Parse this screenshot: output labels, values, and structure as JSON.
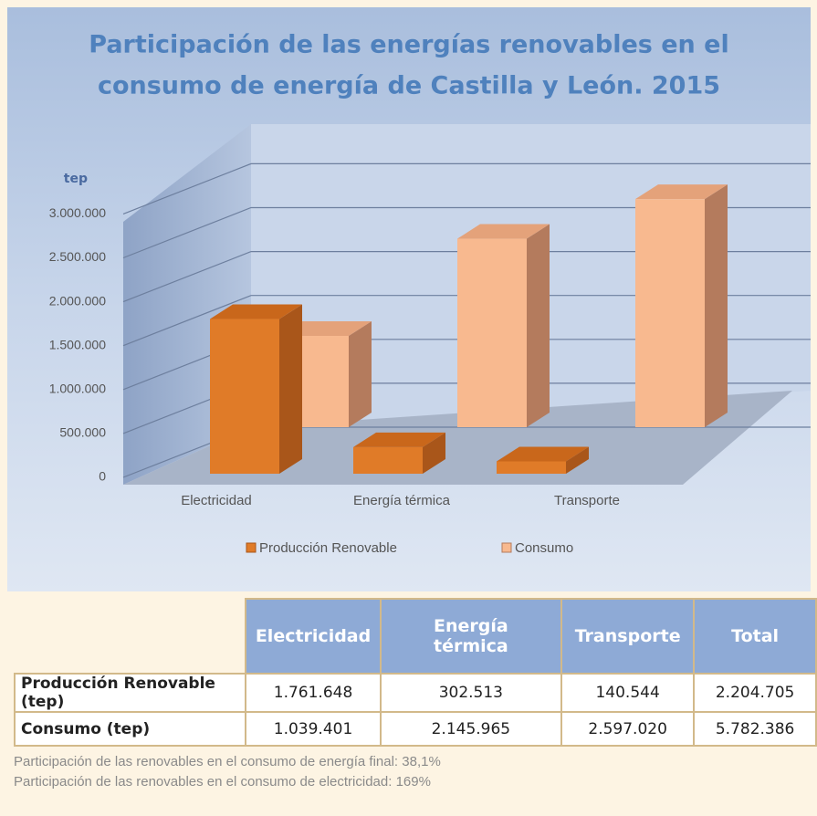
{
  "chart_data": {
    "type": "bar3d",
    "title": [
      "Participación de las energías renovables en el",
      "consumo de energía de Castilla y León. 2015"
    ],
    "y_label": "tep",
    "categories": [
      "Electricidad",
      "Energía térmica",
      "Transporte"
    ],
    "series": [
      {
        "name": "Producción Renovable",
        "color": "#e07b28",
        "values": [
          1761648,
          302513,
          140544
        ]
      },
      {
        "name": "Consumo",
        "color": "#f8b98f",
        "values": [
          1039401,
          2145965,
          2597020
        ]
      }
    ],
    "ylim": [
      0,
      3500000
    ],
    "yticks": [
      0,
      {
        "value": 500000,
        "label": "500.000"
      },
      {
        "value": 1000000,
        "label": "1.000.000"
      },
      {
        "value": 1500000,
        "label": "1.500.000"
      },
      {
        "value": 2000000,
        "label": "2.000.000"
      },
      {
        "value": 2500000,
        "label": "2.500.000"
      },
      {
        "value": 3000000,
        "label": "3.000.000"
      }
    ],
    "grid": true,
    "legend": "bottom"
  },
  "table": {
    "header": [
      "Electricidad",
      "Energía térmica",
      "Transporte",
      "Total"
    ],
    "rows": [
      [
        "Producción Renovable (tep)",
        "1.761.648",
        "302.513",
        "140.544",
        "2.204.705"
      ],
      [
        "Consumo (tep)",
        "1.039.401",
        "2.145.965",
        "2.597.020",
        "5.782.386"
      ]
    ]
  },
  "notes": [
    "Participación de las renovables en el consumo de energía final: 38,1%",
    "Participación de las renovables en el consumo de electricidad: 169%"
  ]
}
